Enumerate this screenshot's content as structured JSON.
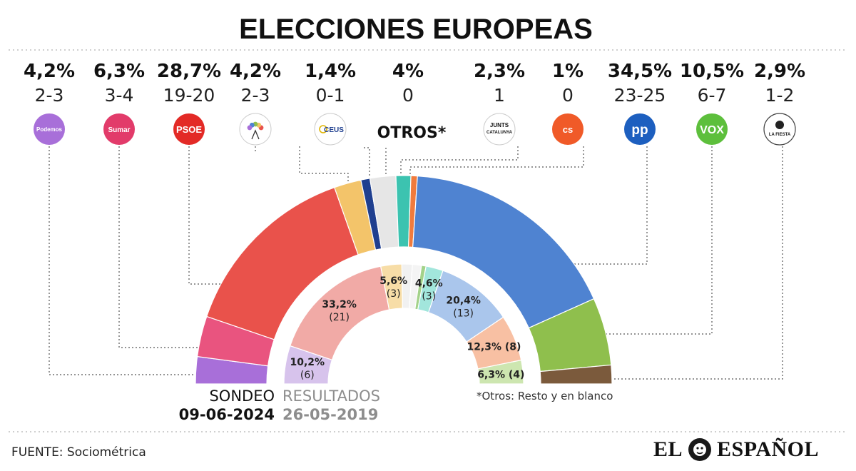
{
  "title": "ELECCIONES EUROPEAS",
  "footer": {
    "source": "FUENTE: Sociométrica",
    "brand_left": "EL",
    "brand_right": "ESPAÑOL"
  },
  "chart_data": {
    "type": "pie",
    "subtype": "double-hemicycle",
    "title": "ELECCIONES EUROPEAS",
    "outer_ring": {
      "label": "SONDEO",
      "date": "09-06-2024",
      "parties": [
        {
          "key": "podemos",
          "name": "Podemos Europa",
          "pct": 4.2,
          "pct_label": "4,2%",
          "seats": "2-3",
          "color": "#a86fd9"
        },
        {
          "key": "sumar",
          "name": "Sumar",
          "pct": 6.3,
          "pct_label": "6,3%",
          "seats": "3-4",
          "color": "#e9547f"
        },
        {
          "key": "psoe",
          "name": "PSOE",
          "pct": 28.7,
          "pct_label": "28,7%",
          "seats": "19-20",
          "color": "#e9524b"
        },
        {
          "key": "ahora_republicas",
          "name": "Ahora Repúblicas",
          "pct": 4.2,
          "pct_label": "4,2%",
          "seats": "2-3",
          "color": "#f3c46a"
        },
        {
          "key": "ceus",
          "name": "CEUS",
          "pct": 1.4,
          "pct_label": "1,4%",
          "seats": "0-1",
          "color": "#1f3f8f"
        },
        {
          "key": "otros",
          "name": "OTROS*",
          "pct": 4,
          "pct_label": "4%",
          "seats": "0",
          "color": "#e6e6e6"
        },
        {
          "key": "junts",
          "name": "Junts per Catalunya",
          "pct": 2.3,
          "pct_label": "2,3%",
          "seats": "1",
          "color": "#3cc3b0"
        },
        {
          "key": "cs",
          "name": "Cs",
          "pct": 1,
          "pct_label": "1%",
          "seats": "0",
          "color": "#f07b3d"
        },
        {
          "key": "pp",
          "name": "PP",
          "pct": 34.5,
          "pct_label": "34,5%",
          "seats": "23-25",
          "color": "#4f83d1"
        },
        {
          "key": "vox",
          "name": "VOX",
          "pct": 10.5,
          "pct_label": "10,5%",
          "seats": "6-7",
          "color": "#8fbf4d"
        },
        {
          "key": "salf",
          "name": "Se Acabó La Fiesta",
          "pct": 2.9,
          "pct_label": "2,9%",
          "seats": "1-2",
          "color": "#7b5a3c"
        }
      ]
    },
    "inner_ring": {
      "label": "RESULTADOS",
      "date": "26-05-2019",
      "parties": [
        {
          "key": "up",
          "pct": 10.2,
          "pct_label": "10,2%",
          "seats": "(6)",
          "color": "#d7c3ec"
        },
        {
          "key": "psoe",
          "pct": 33.2,
          "pct_label": "33,2%",
          "seats": "(21)",
          "color": "#f1aaa6"
        },
        {
          "key": "ahora_republicas",
          "pct": 5.6,
          "pct_label": "5,6%",
          "seats": "(3)",
          "color": "#f7dda7"
        },
        {
          "key": "ceus",
          "pct": 2.8,
          "pct_label": "",
          "seats": "",
          "color": "#f1f1f1"
        },
        {
          "key": "otros",
          "pct": 2.4,
          "pct_label": "",
          "seats": "",
          "color": "#f4f4f4"
        },
        {
          "key": "pp2",
          "pct": 1.2,
          "pct_label": "",
          "seats": "",
          "color": "#a3d28a"
        },
        {
          "key": "junts",
          "pct": 4.6,
          "pct_label": "4,6%",
          "seats": "(3)",
          "color": "#a2e6dc"
        },
        {
          "key": "pp",
          "pct": 20.4,
          "pct_label": "20,4%",
          "seats": "(13)",
          "color": "#aac6ec"
        },
        {
          "key": "cs",
          "pct": 12.3,
          "pct_label": "12,3% (8)",
          "seats": "",
          "color": "#f8c0a3"
        },
        {
          "key": "vox",
          "pct": 6.3,
          "pct_label": "6,3% (4)",
          "seats": "",
          "color": "#cde6b0"
        }
      ]
    },
    "note": "*Otros: Resto y en blanco"
  }
}
